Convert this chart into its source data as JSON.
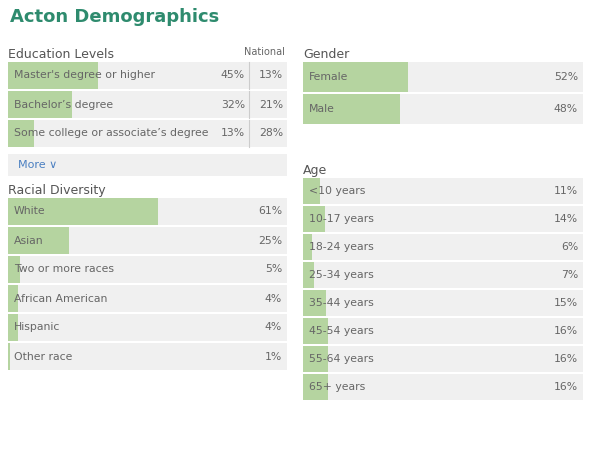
{
  "title": "Acton Demographics",
  "title_color": "#2e8b6e",
  "bg_color": "#ffffff",
  "row_bg": "#f0f0f0",
  "bar_color": "#b5d4a0",
  "text_color": "#666666",
  "section_color": "#555555",
  "link_color": "#4a7fc1",
  "education": {
    "header": "Education Levels",
    "national_label": "National",
    "items": [
      {
        "label": "Master's degree or higher",
        "value": 45,
        "national": 13
      },
      {
        "label": "Bachelor’s degree",
        "value": 32,
        "national": 21
      },
      {
        "label": "Some college or associate’s degree",
        "value": 13,
        "national": 28
      }
    ]
  },
  "racial": {
    "header": "Racial Diversity",
    "items": [
      {
        "label": "White",
        "value": 61
      },
      {
        "label": "Asian",
        "value": 25
      },
      {
        "label": "Two or more races",
        "value": 5
      },
      {
        "label": "African American",
        "value": 4
      },
      {
        "label": "Hispanic",
        "value": 4
      },
      {
        "label": "Other race",
        "value": 1
      }
    ]
  },
  "gender": {
    "header": "Gender",
    "items": [
      {
        "label": "Female",
        "value": 52
      },
      {
        "label": "Male",
        "value": 48
      }
    ]
  },
  "age": {
    "header": "Age",
    "items": [
      {
        "label": "<10 years",
        "value": 11
      },
      {
        "label": "10-17 years",
        "value": 14
      },
      {
        "label": "18-24 years",
        "value": 6
      },
      {
        "label": "25-34 years",
        "value": 7
      },
      {
        "label": "35-44 years",
        "value": 15
      },
      {
        "label": "45-54 years",
        "value": 16
      },
      {
        "label": "55-64 years",
        "value": 16
      },
      {
        "label": "65+ years",
        "value": 16
      }
    ]
  }
}
